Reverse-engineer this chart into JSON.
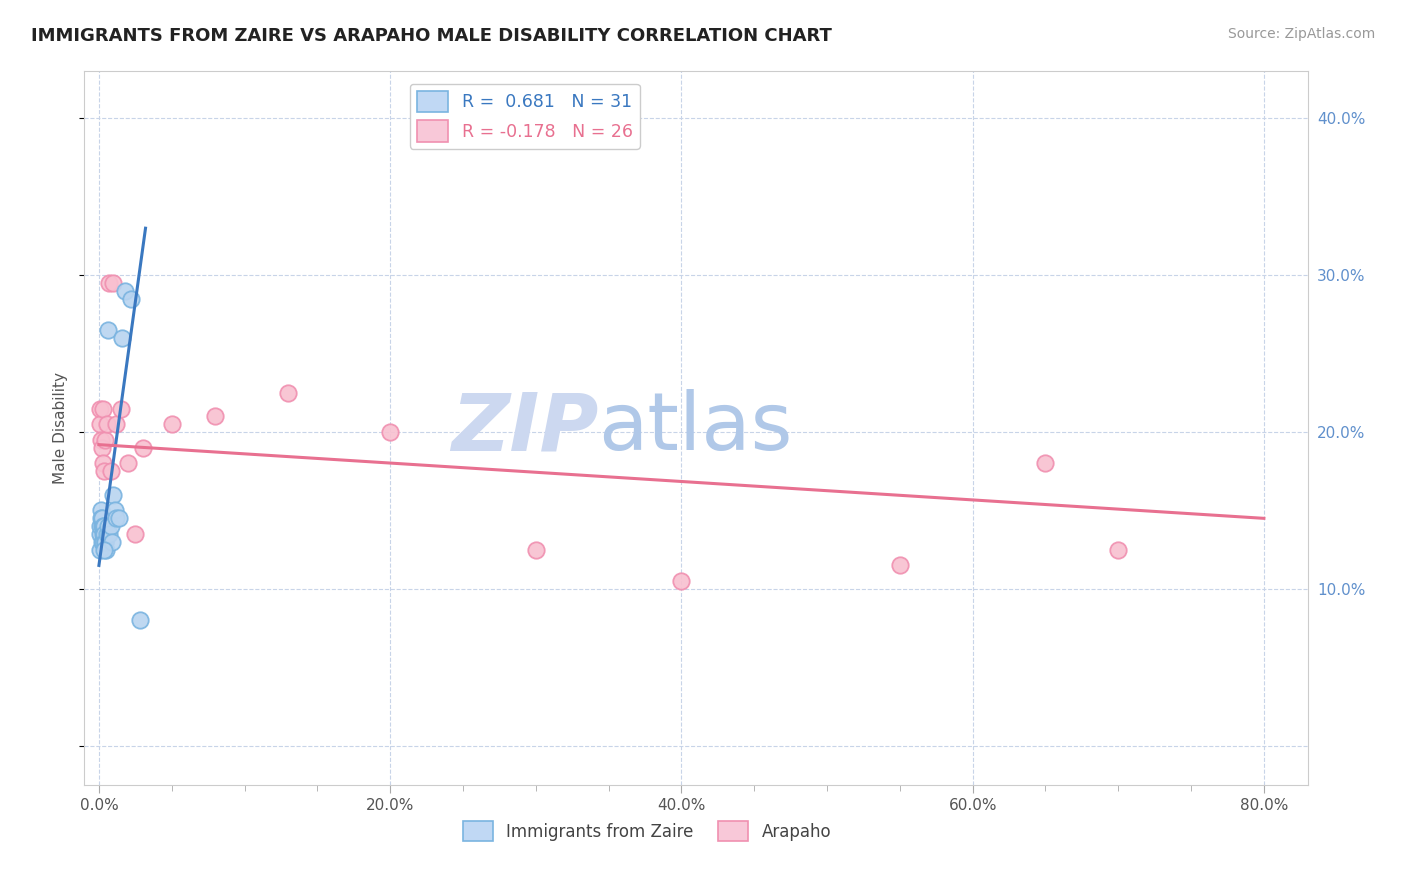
{
  "title": "IMMIGRANTS FROM ZAIRE VS ARAPAHO MALE DISABILITY CORRELATION CHART",
  "source": "Source: ZipAtlas.com",
  "xlabel_vals": [
    0.0,
    20.0,
    40.0,
    60.0,
    80.0
  ],
  "ylabel_vals": [
    10.0,
    20.0,
    30.0,
    40.0
  ],
  "xlim": [
    -1.0,
    83
  ],
  "ylim": [
    -2.5,
    43
  ],
  "blue_R": 0.681,
  "blue_N": 31,
  "pink_R": -0.178,
  "pink_N": 26,
  "blue_dot_color": "#7ab4e0",
  "blue_dot_face": "#b8d4f0",
  "pink_dot_color": "#f090b0",
  "pink_dot_face": "#f8c0d0",
  "trend_blue": "#3a78c0",
  "trend_pink": "#e87090",
  "legend_blue_face": "#c0d8f4",
  "legend_pink_face": "#f8c8d8",
  "legend_blue_edge": "#7ab4e0",
  "legend_pink_edge": "#f090b0",
  "watermark_zip": "ZIP",
  "watermark_atlas": "atlas",
  "watermark_zip_color": "#ccd8f0",
  "watermark_atlas_color": "#b0c8e8",
  "grid_color": "#c8d4e8",
  "bg_color": "#ffffff",
  "blue_scatter_x": [
    0.05,
    0.08,
    0.1,
    0.12,
    0.15,
    0.18,
    0.2,
    0.22,
    0.25,
    0.28,
    0.3,
    0.32,
    0.35,
    0.4,
    0.45,
    0.5,
    0.55,
    0.6,
    0.65,
    0.7,
    0.8,
    0.9,
    1.0,
    1.1,
    1.2,
    1.4,
    1.6,
    1.8,
    2.2,
    2.8,
    0.38
  ],
  "blue_scatter_y": [
    13.5,
    14.0,
    12.5,
    15.0,
    14.5,
    13.0,
    14.0,
    14.5,
    13.5,
    14.0,
    13.0,
    14.0,
    13.5,
    13.0,
    13.0,
    12.5,
    13.5,
    14.0,
    26.5,
    13.5,
    14.0,
    13.0,
    16.0,
    15.0,
    14.5,
    14.5,
    26.0,
    29.0,
    28.5,
    8.0,
    12.5
  ],
  "pink_scatter_x": [
    0.05,
    0.1,
    0.15,
    0.2,
    0.25,
    0.3,
    0.35,
    0.4,
    0.55,
    0.7,
    0.8,
    1.0,
    1.2,
    1.5,
    2.0,
    2.5,
    3.0,
    5.0,
    8.0,
    13.0,
    20.0,
    30.0,
    40.0,
    55.0,
    65.0,
    70.0
  ],
  "pink_scatter_y": [
    21.5,
    20.5,
    19.5,
    19.0,
    18.0,
    21.5,
    17.5,
    19.5,
    20.5,
    29.5,
    17.5,
    29.5,
    20.5,
    21.5,
    18.0,
    13.5,
    19.0,
    20.5,
    21.0,
    22.5,
    20.0,
    12.5,
    10.5,
    11.5,
    18.0,
    12.5
  ],
  "blue_trend_x": [
    0.0,
    3.2
  ],
  "blue_trend_y": [
    11.5,
    33.0
  ],
  "pink_trend_x": [
    0.0,
    80.0
  ],
  "pink_trend_y": [
    19.2,
    14.5
  ]
}
